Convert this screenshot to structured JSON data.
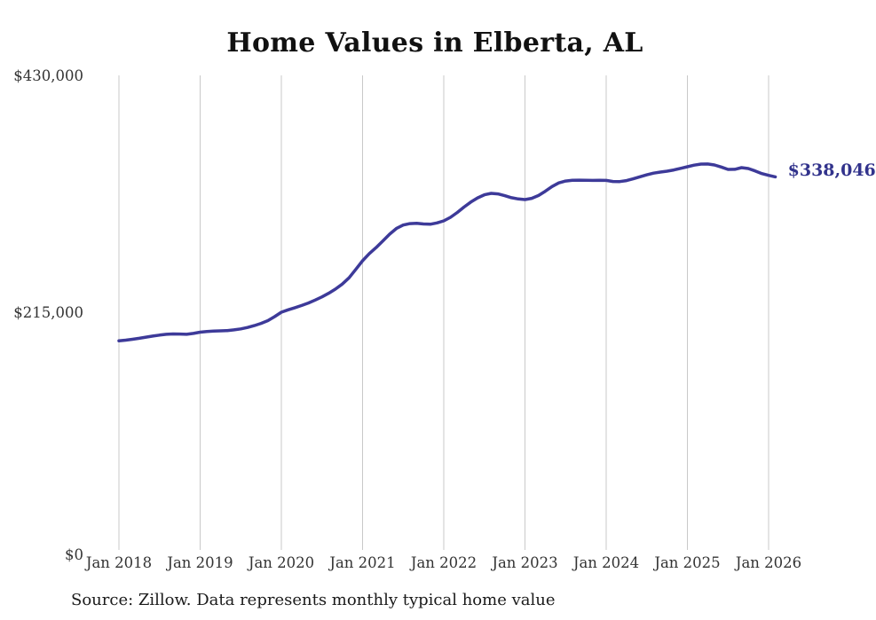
{
  "chart": {
    "title": "Home Values in Elberta, AL",
    "end_label": "$338,046",
    "source": "Source: Zillow. Data represents monthly typical home value",
    "colors": {
      "line": "#3d3a99",
      "end_label": "#32338c",
      "gridline": "#c9c9c9",
      "axis_text": "#333333",
      "title_text": "#111111",
      "source_text": "#1a1a1a",
      "background": "#ffffff"
    }
  },
  "chart_data": {
    "type": "line",
    "title": "Home Values in Elberta, AL",
    "xlabel": "",
    "ylabel": "",
    "x_start": "Jan 2018",
    "x_end": "Feb 2026",
    "x_interval": "monthly",
    "x_tick_labels": [
      "Jan 2018",
      "Jan 2019",
      "Jan 2020",
      "Jan 2021",
      "Jan 2022",
      "Jan 2023",
      "Jan 2024",
      "Jan 2025",
      "Jan 2026"
    ],
    "y_tick_labels": [
      "$430,000",
      "$215,000",
      "$0"
    ],
    "y_tick_values": [
      430000,
      215000,
      0
    ],
    "ylim": [
      0,
      430000
    ],
    "grid": "vertical-only",
    "legend": "none",
    "annotation_last_value": "$338,046",
    "series": [
      {
        "name": "Monthly typical home value",
        "last_value": 338046,
        "values": [
          189500,
          190100,
          190900,
          191800,
          192800,
          193800,
          194700,
          195400,
          195700,
          195600,
          195400,
          196200,
          197300,
          197900,
          198300,
          198500,
          198800,
          199400,
          200300,
          201600,
          203300,
          205300,
          207800,
          211400,
          215400,
          217600,
          219500,
          221500,
          223800,
          226400,
          229300,
          232600,
          236400,
          240900,
          246600,
          254200,
          262000,
          268500,
          274000,
          280000,
          286100,
          291300,
          294400,
          295700,
          296000,
          295400,
          295100,
          296300,
          298200,
          301400,
          305800,
          310700,
          315200,
          319000,
          321800,
          323100,
          322600,
          321000,
          319200,
          318000,
          317500,
          318600,
          321200,
          325000,
          329300,
          332600,
          334300,
          335000,
          335100,
          334900,
          334800,
          334900,
          334800,
          333900,
          333800,
          334700,
          336300,
          338100,
          339900,
          341400,
          342400,
          343200,
          344300,
          345800,
          347200,
          348700,
          349600,
          349700,
          348800,
          347000,
          344800,
          344900,
          346400,
          345600,
          343400,
          341000,
          339400,
          338046
        ]
      }
    ]
  }
}
